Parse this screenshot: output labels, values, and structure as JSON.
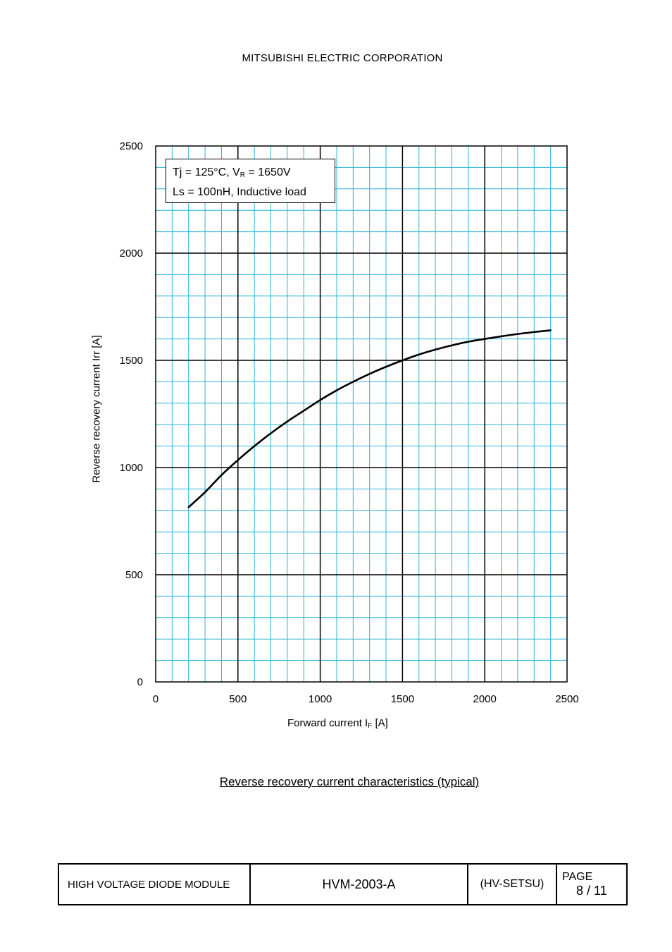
{
  "header": {
    "company": "MITSUBISHI ELECTRIC CORPORATION"
  },
  "annotation": {
    "line1_prefix": "Tj = 125°C, V",
    "line1_sub": "R",
    "line1_suffix": " = 1650V",
    "line2": "Ls = 100nH, Inductive load"
  },
  "axis_labels": {
    "y": "Reverse recovery current    Irr    [A]",
    "x_prefix": "Forward current    I",
    "x_sub": "F",
    "x_suffix": " [A]"
  },
  "caption": "Reverse recovery current characteristics (typical)",
  "footer": {
    "product": "HIGH VOLTAGE DIODE MODULE",
    "doc_number": "HVM-2003-A",
    "code": "(HV-SETSU)",
    "page_label": "PAGE",
    "page_number": "8 / 11"
  },
  "colors": {
    "grid_minor": "#29b6d6",
    "grid_major": "#000000",
    "curve": "#000000"
  },
  "chart_data": {
    "type": "line",
    "xlim": [
      0,
      2500
    ],
    "ylim": [
      0,
      2500
    ],
    "x_ticks": [
      "0",
      "500",
      "1000",
      "1500",
      "2000",
      "2500"
    ],
    "y_ticks": [
      "0",
      "500",
      "1000",
      "1500",
      "2000",
      "2500"
    ],
    "grid": true,
    "series": [
      {
        "x": [
          200,
          300,
          400,
          500,
          600,
          700,
          800,
          900,
          1000,
          1100,
          1200,
          1300,
          1400,
          1500,
          1600,
          1700,
          1800,
          1900,
          2000,
          2100,
          2200,
          2300,
          2400
        ],
        "y": [
          815,
          885,
          965,
          1035,
          1100,
          1160,
          1215,
          1265,
          1315,
          1360,
          1400,
          1437,
          1470,
          1500,
          1527,
          1550,
          1570,
          1587,
          1600,
          1612,
          1623,
          1632,
          1640
        ]
      }
    ]
  }
}
